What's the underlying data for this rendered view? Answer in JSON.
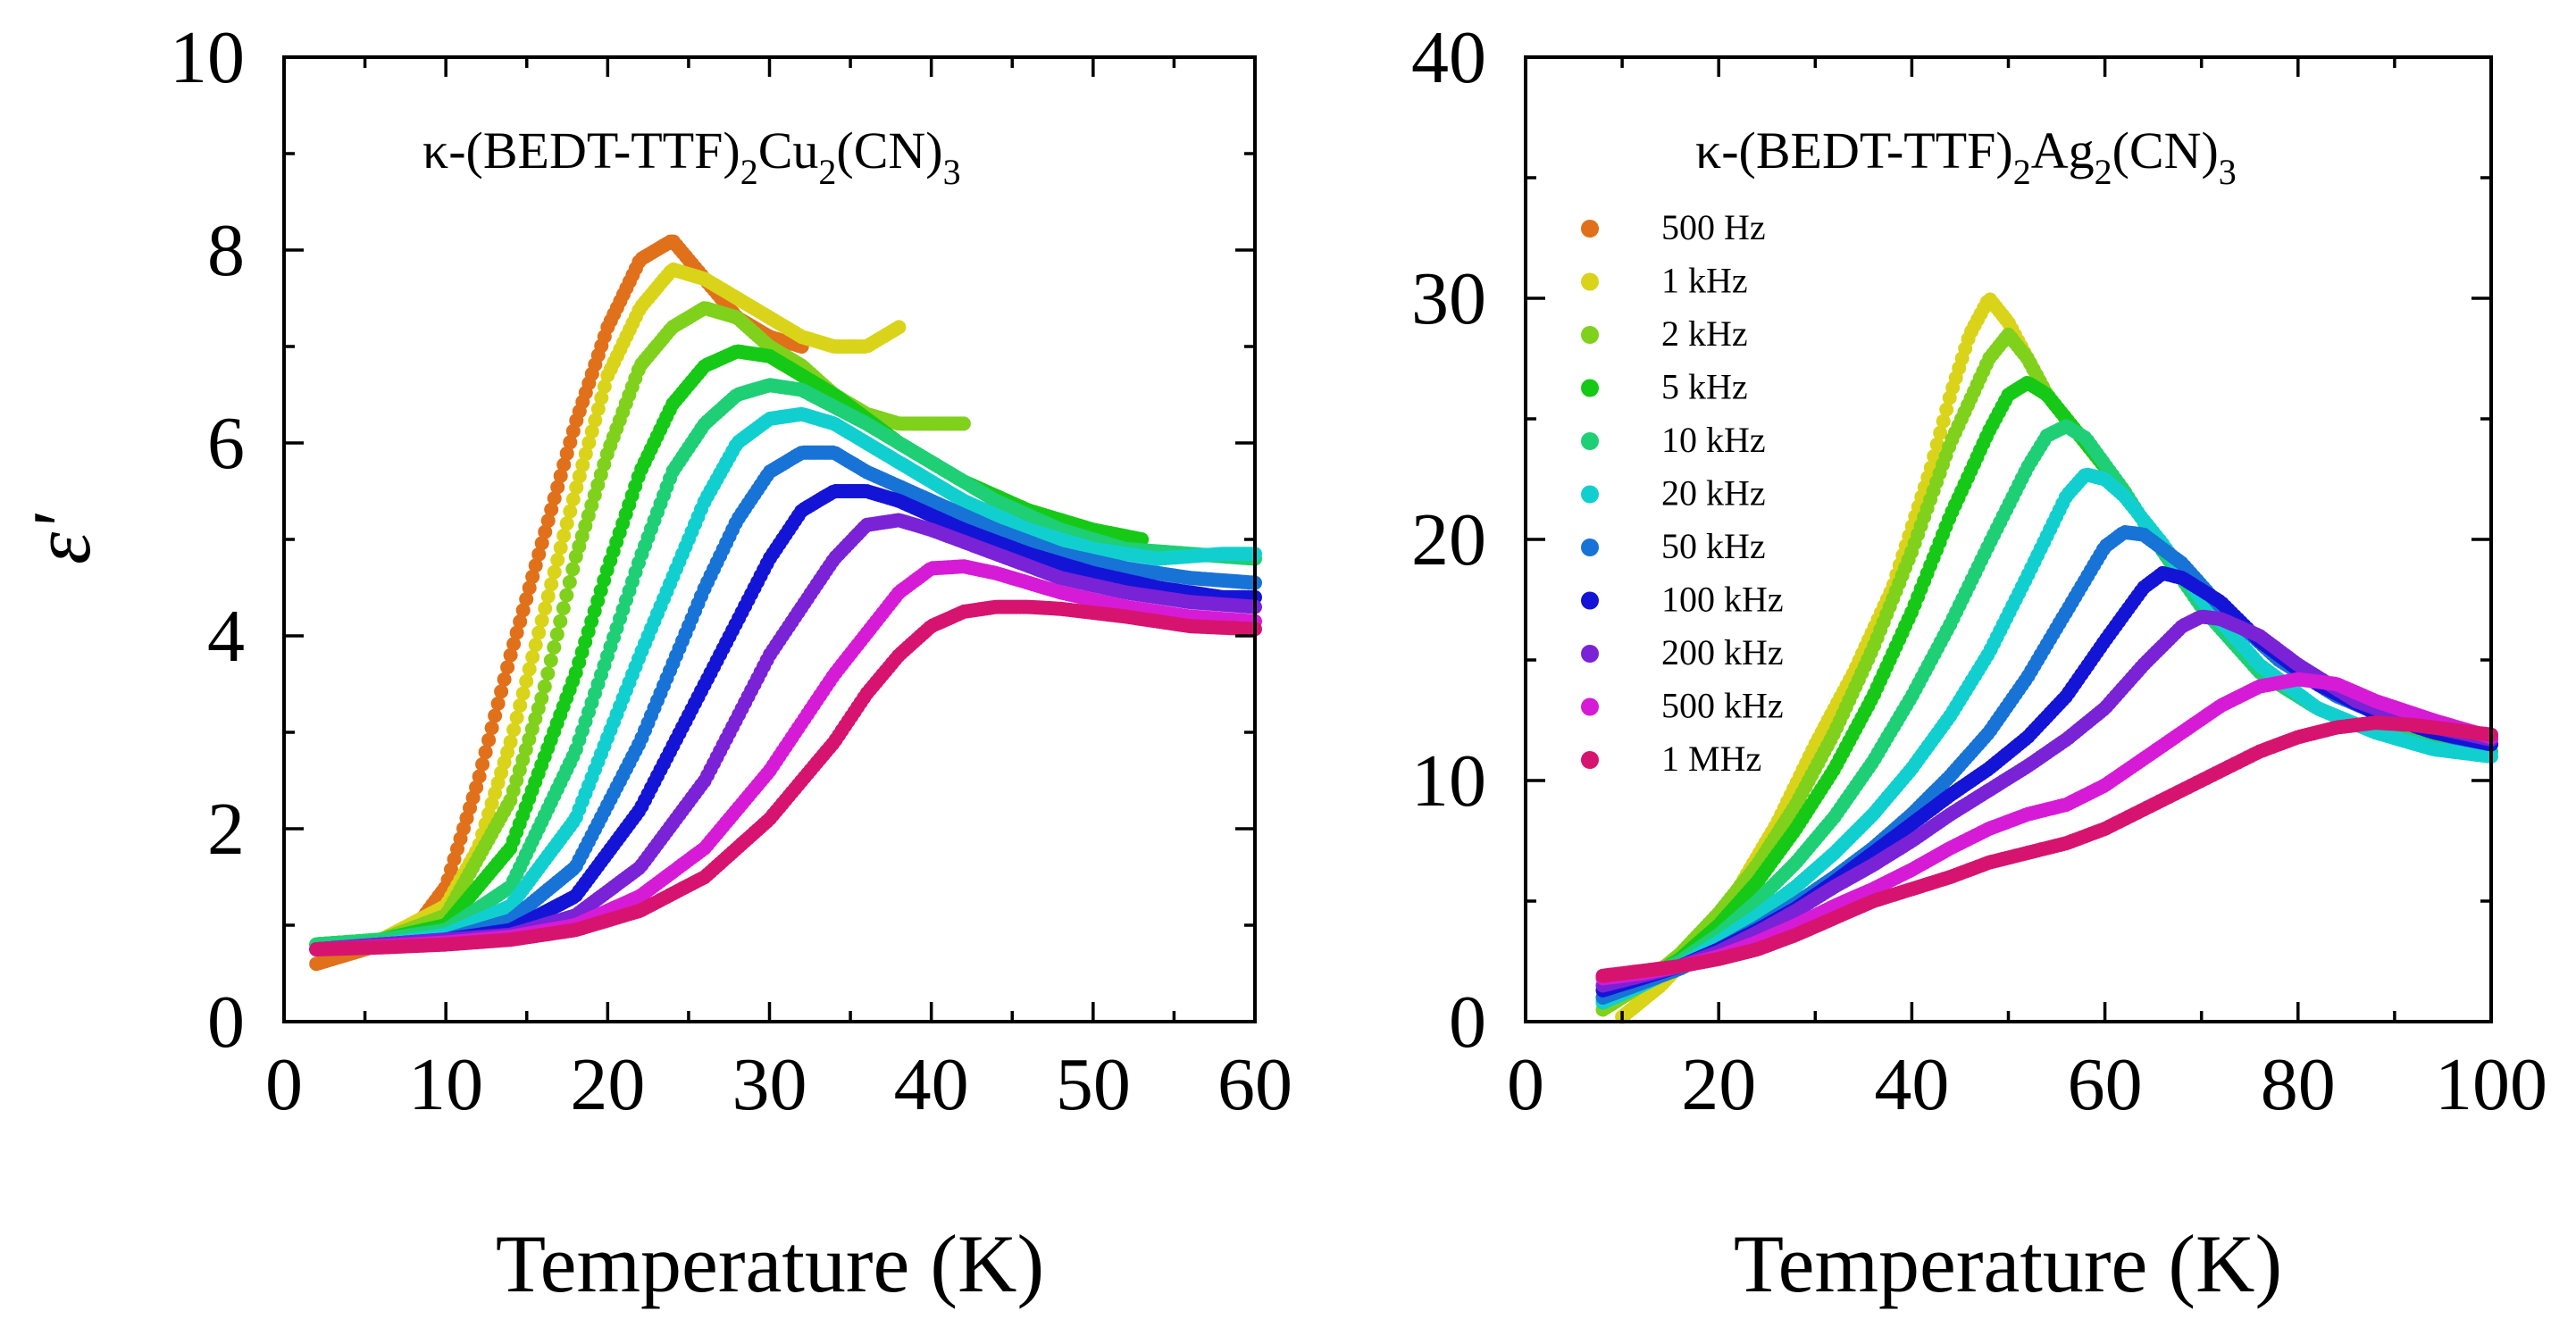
{
  "chart_data": [
    {
      "type": "scatter",
      "title": "κ-(BEDT-TTF)2Cu2(CN)3",
      "title_parts": {
        "pre": "κ-(BEDT-TTF)",
        "s1": "2",
        "mid": "Cu",
        "s2": "2",
        "post": "(CN)",
        "s3": "3"
      },
      "xlabel": "Temperature (K)",
      "ylabel": "ε'",
      "xlim": [
        0,
        60
      ],
      "ylim": [
        0,
        10
      ],
      "xticks": [
        0,
        10,
        20,
        30,
        40,
        50,
        60
      ],
      "yticks": [
        0,
        2,
        4,
        6,
        8,
        10
      ],
      "legend": "none",
      "series": [
        {
          "color": "#e0701a",
          "x": [
            2,
            4,
            6,
            8,
            10,
            12,
            14,
            16,
            18,
            20,
            22,
            24,
            26,
            28,
            30,
            32
          ],
          "values": [
            0.6,
            0.7,
            0.8,
            0.95,
            1.4,
            2.5,
            3.8,
            5.0,
            6.2,
            7.2,
            7.9,
            8.1,
            7.7,
            7.3,
            7.1,
            7.0
          ]
        },
        {
          "color": "#d9d419",
          "x": [
            2,
            6,
            10,
            12,
            14,
            16,
            18,
            20,
            22,
            24,
            26,
            28,
            30,
            32,
            34,
            36,
            38
          ],
          "values": [
            0.8,
            0.85,
            1.2,
            1.8,
            2.9,
            4.2,
            5.5,
            6.7,
            7.4,
            7.8,
            7.7,
            7.5,
            7.3,
            7.1,
            7.0,
            7.0,
            7.2
          ]
        },
        {
          "color": "#7fd11c",
          "x": [
            2,
            6,
            10,
            14,
            16,
            18,
            20,
            22,
            24,
            26,
            28,
            30,
            32,
            34,
            36,
            38,
            40,
            42
          ],
          "values": [
            0.8,
            0.85,
            1.1,
            2.3,
            3.4,
            4.8,
            5.9,
            6.8,
            7.2,
            7.4,
            7.3,
            7.0,
            6.8,
            6.5,
            6.3,
            6.2,
            6.2,
            6.2
          ]
        },
        {
          "color": "#16c916",
          "x": [
            2,
            6,
            10,
            14,
            18,
            20,
            22,
            24,
            26,
            28,
            30,
            34,
            38,
            42,
            46,
            50,
            53
          ],
          "values": [
            0.8,
            0.85,
            1.0,
            1.8,
            3.6,
            4.7,
            5.7,
            6.4,
            6.8,
            6.95,
            6.9,
            6.5,
            6.0,
            5.6,
            5.3,
            5.1,
            5.0
          ]
        },
        {
          "color": "#1ecf75",
          "x": [
            2,
            6,
            10,
            14,
            18,
            22,
            24,
            26,
            28,
            30,
            32,
            36,
            40,
            44,
            48,
            52,
            56,
            60
          ],
          "values": [
            0.8,
            0.85,
            0.95,
            1.4,
            2.8,
            4.8,
            5.7,
            6.2,
            6.5,
            6.6,
            6.55,
            6.2,
            5.8,
            5.4,
            5.1,
            4.9,
            4.85,
            4.8
          ]
        },
        {
          "color": "#12cfcf",
          "x": [
            2,
            6,
            10,
            14,
            18,
            22,
            26,
            28,
            30,
            32,
            34,
            38,
            42,
            46,
            50,
            54,
            58,
            60
          ],
          "values": [
            0.75,
            0.8,
            0.9,
            1.2,
            2.1,
            3.8,
            5.4,
            6.0,
            6.25,
            6.3,
            6.2,
            5.8,
            5.4,
            5.1,
            4.9,
            4.8,
            4.85,
            4.85
          ]
        },
        {
          "color": "#1873d6",
          "x": [
            2,
            6,
            10,
            14,
            18,
            22,
            26,
            28,
            30,
            32,
            34,
            36,
            40,
            44,
            48,
            52,
            56,
            60
          ],
          "values": [
            0.75,
            0.8,
            0.85,
            1.05,
            1.6,
            2.9,
            4.5,
            5.2,
            5.7,
            5.9,
            5.9,
            5.7,
            5.4,
            5.1,
            4.85,
            4.7,
            4.6,
            4.55
          ]
        },
        {
          "color": "#1414d6",
          "x": [
            2,
            6,
            10,
            14,
            18,
            22,
            26,
            30,
            32,
            34,
            36,
            38,
            42,
            46,
            50,
            54,
            58,
            60
          ],
          "values": [
            0.75,
            0.8,
            0.85,
            0.95,
            1.3,
            2.2,
            3.5,
            4.8,
            5.3,
            5.5,
            5.5,
            5.4,
            5.1,
            4.85,
            4.65,
            4.5,
            4.4,
            4.4
          ]
        },
        {
          "color": "#7a22d6",
          "x": [
            2,
            6,
            10,
            14,
            18,
            22,
            26,
            30,
            34,
            36,
            38,
            40,
            44,
            48,
            52,
            56,
            60
          ],
          "values": [
            0.75,
            0.8,
            0.85,
            0.9,
            1.1,
            1.6,
            2.5,
            3.8,
            4.8,
            5.15,
            5.2,
            5.1,
            4.85,
            4.6,
            4.45,
            4.35,
            4.3
          ]
        },
        {
          "color": "#d61bd6",
          "x": [
            2,
            6,
            10,
            14,
            18,
            22,
            26,
            30,
            34,
            38,
            40,
            42,
            44,
            48,
            52,
            56,
            60
          ],
          "values": [
            0.75,
            0.78,
            0.82,
            0.88,
            1.0,
            1.3,
            1.8,
            2.6,
            3.6,
            4.45,
            4.7,
            4.72,
            4.65,
            4.45,
            4.3,
            4.2,
            4.15
          ]
        },
        {
          "color": "#d6146f",
          "x": [
            2,
            6,
            10,
            14,
            18,
            22,
            26,
            30,
            34,
            36,
            38,
            40,
            42,
            44,
            46,
            48,
            52,
            56,
            60
          ],
          "values": [
            0.75,
            0.77,
            0.8,
            0.85,
            0.95,
            1.15,
            1.5,
            2.1,
            2.9,
            3.4,
            3.8,
            4.1,
            4.25,
            4.3,
            4.3,
            4.28,
            4.2,
            4.1,
            4.07
          ]
        }
      ]
    },
    {
      "type": "scatter",
      "title": "κ-(BEDT-TTF)2Ag2(CN)3",
      "title_parts": {
        "pre": "κ-(BEDT-TTF)",
        "s1": "2",
        "mid": "Ag",
        "s2": "2",
        "post": "(CN)",
        "s3": "3"
      },
      "xlabel": "Temperature (K)",
      "ylabel": "",
      "xlim": [
        0,
        100
      ],
      "ylim": [
        0,
        40
      ],
      "xticks": [
        0,
        20,
        40,
        60,
        80,
        100
      ],
      "yticks": [
        0,
        10,
        20,
        30,
        40
      ],
      "legend": "top-left",
      "series": [
        {
          "name": "500 Hz",
          "color": "#e0701a",
          "x": [],
          "values": []
        },
        {
          "name": "1 kHz",
          "color": "#d9d419",
          "x": [
            10,
            14,
            18,
            22,
            26,
            30,
            34,
            38,
            42,
            44,
            46,
            48,
            50,
            52,
            54,
            56,
            58,
            60,
            62
          ],
          "values": [
            0.2,
            1.5,
            3.2,
            5.5,
            8.2,
            11.5,
            14.5,
            18.0,
            23.0,
            26.0,
            28.5,
            30.0,
            29.0,
            27.5,
            26.0,
            25.0,
            24.0,
            23.0,
            22.0
          ]
        },
        {
          "name": "2 kHz",
          "color": "#7fd11c",
          "x": [
            8,
            12,
            16,
            20,
            24,
            28,
            32,
            36,
            40,
            44,
            48,
            50,
            52,
            54,
            56,
            58,
            60
          ],
          "values": [
            0.5,
            1.5,
            2.8,
            4.5,
            6.5,
            9.0,
            12.0,
            15.5,
            19.5,
            24.0,
            27.5,
            28.5,
            27.5,
            26.0,
            25.0,
            24.0,
            23.0
          ]
        },
        {
          "name": "5 kHz",
          "color": "#16c916",
          "x": [
            8,
            12,
            16,
            20,
            24,
            28,
            32,
            36,
            40,
            44,
            48,
            50,
            52,
            54,
            56,
            58,
            60
          ],
          "values": [
            0.8,
            1.6,
            2.6,
            4.0,
            5.8,
            8.0,
            10.5,
            13.5,
            17.0,
            21.0,
            24.5,
            26.0,
            26.5,
            26.0,
            25.0,
            24.0,
            23.0
          ]
        },
        {
          "name": "10 kHz",
          "color": "#1ecf75",
          "x": [
            8,
            12,
            16,
            20,
            24,
            28,
            32,
            36,
            40,
            44,
            48,
            52,
            54,
            56,
            58,
            62,
            66,
            70,
            76,
            82,
            88,
            94,
            100
          ],
          "values": [
            1.0,
            1.7,
            2.5,
            3.6,
            5.0,
            6.6,
            8.5,
            10.8,
            13.5,
            16.5,
            19.8,
            23.0,
            24.3,
            24.7,
            24.2,
            22.0,
            19.5,
            17.2,
            14.5,
            13.0,
            12.0,
            11.5,
            11.2
          ]
        },
        {
          "name": "20 kHz",
          "color": "#12cfcf",
          "x": [
            8,
            12,
            16,
            20,
            24,
            28,
            32,
            36,
            40,
            44,
            48,
            52,
            56,
            58,
            60,
            62,
            66,
            70,
            76,
            82,
            88,
            94,
            100
          ],
          "values": [
            0.8,
            1.5,
            2.3,
            3.3,
            4.4,
            5.6,
            7.0,
            8.6,
            10.5,
            12.7,
            15.3,
            18.5,
            21.8,
            22.7,
            22.5,
            21.8,
            19.8,
            17.5,
            14.8,
            13.0,
            12.0,
            11.3,
            11.0
          ]
        },
        {
          "name": "50 kHz",
          "color": "#1873d6",
          "x": [
            8,
            12,
            16,
            20,
            24,
            28,
            32,
            36,
            40,
            44,
            48,
            52,
            56,
            60,
            62,
            64,
            68,
            72,
            78,
            84,
            90,
            96,
            100
          ],
          "values": [
            1.0,
            1.6,
            2.2,
            3.0,
            3.9,
            4.9,
            6.0,
            7.2,
            8.6,
            10.2,
            12.0,
            14.3,
            17.0,
            19.7,
            20.3,
            20.2,
            19.0,
            17.2,
            15.0,
            13.5,
            12.5,
            11.8,
            11.5
          ]
        },
        {
          "name": "100 kHz",
          "color": "#1414d6",
          "x": [
            8,
            12,
            16,
            20,
            24,
            28,
            32,
            36,
            40,
            44,
            48,
            52,
            56,
            60,
            64,
            66,
            68,
            72,
            76,
            82,
            88,
            94,
            100
          ],
          "values": [
            1.3,
            1.8,
            2.3,
            3.0,
            3.8,
            4.7,
            5.8,
            7.0,
            8.2,
            9.4,
            10.5,
            11.8,
            13.5,
            15.8,
            18.0,
            18.6,
            18.4,
            17.4,
            15.8,
            14.0,
            12.8,
            12.0,
            11.5
          ]
        },
        {
          "name": "200 kHz",
          "color": "#7a22d6",
          "x": [
            8,
            12,
            16,
            20,
            24,
            28,
            32,
            36,
            40,
            44,
            48,
            52,
            56,
            60,
            64,
            68,
            70,
            72,
            76,
            80,
            86,
            92,
            100
          ],
          "values": [
            1.5,
            1.9,
            2.3,
            2.9,
            3.7,
            4.6,
            5.6,
            6.5,
            7.5,
            8.6,
            9.6,
            10.6,
            11.7,
            13.0,
            14.8,
            16.4,
            16.8,
            16.7,
            16.0,
            14.8,
            13.3,
            12.4,
            11.7
          ]
        },
        {
          "name": "500 kHz",
          "color": "#d61bd6",
          "x": [
            8,
            12,
            16,
            20,
            24,
            28,
            32,
            36,
            40,
            44,
            48,
            52,
            56,
            60,
            64,
            68,
            72,
            76,
            80,
            84,
            88,
            94,
            100
          ],
          "values": [
            1.8,
            2.0,
            2.3,
            2.7,
            3.3,
            4.0,
            4.8,
            5.5,
            6.3,
            7.2,
            8.0,
            8.6,
            9.0,
            9.8,
            10.9,
            12.0,
            13.1,
            13.9,
            14.2,
            14.0,
            13.3,
            12.5,
            11.8
          ]
        },
        {
          "name": "1 MHz",
          "color": "#d6146f",
          "x": [
            8,
            12,
            16,
            20,
            24,
            28,
            32,
            36,
            40,
            44,
            48,
            52,
            56,
            60,
            64,
            68,
            72,
            76,
            80,
            84,
            88,
            92,
            96,
            100
          ],
          "values": [
            1.9,
            2.1,
            2.3,
            2.6,
            3.0,
            3.6,
            4.3,
            5.0,
            5.5,
            6.0,
            6.6,
            7.0,
            7.4,
            8.0,
            8.8,
            9.6,
            10.4,
            11.2,
            11.8,
            12.2,
            12.4,
            12.3,
            12.1,
            11.9
          ]
        }
      ]
    }
  ]
}
